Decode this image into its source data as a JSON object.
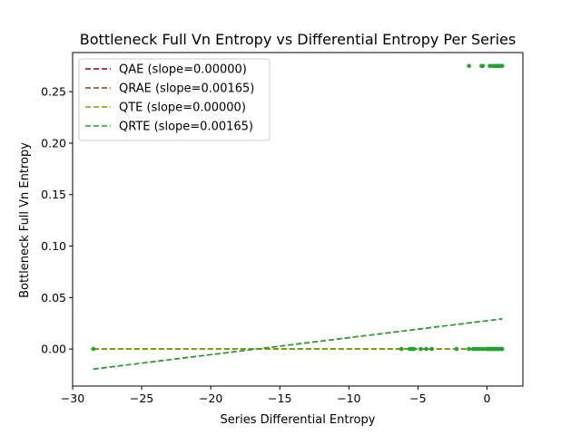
{
  "chart_data": {
    "type": "scatter",
    "title": "Bottleneck Full Vn Entropy vs Differential Entropy Per Series",
    "xlabel": "Series Differential Entropy",
    "ylabel": "Bottleneck Full Vn Entropy",
    "xlim": [
      -30,
      2.6
    ],
    "ylim": [
      -0.036,
      0.288
    ],
    "xticks": [
      -30,
      -25,
      -20,
      -15,
      -10,
      -5,
      0
    ],
    "xtick_labels": [
      "−30",
      "−25",
      "−20",
      "−15",
      "−10",
      "−5",
      "0"
    ],
    "yticks": [
      0.0,
      0.05,
      0.1,
      0.15,
      0.2,
      0.25
    ],
    "ytick_labels": [
      "0.00",
      "0.05",
      "0.10",
      "0.15",
      "0.20",
      "0.25"
    ],
    "grid": false,
    "legend_position": "upper-left",
    "series": [
      {
        "name": "QAE (slope=0.00000)",
        "color": "#8b0000",
        "line": {
          "x": [
            -28.5,
            1.1
          ],
          "y": [
            0.0,
            0.0
          ]
        },
        "points": []
      },
      {
        "name": "QRAE (slope=0.00165)",
        "color": "#7a4a00",
        "line": {
          "x": [
            -28.5,
            1.1
          ],
          "y": [
            -0.0195,
            0.0293
          ]
        },
        "points": []
      },
      {
        "name": "QTE (slope=0.00000)",
        "color": "#6aaa00",
        "line": {
          "x": [
            -28.5,
            1.1
          ],
          "y": [
            0.0,
            0.0
          ]
        },
        "points": []
      },
      {
        "name": "QRTE (slope=0.00165)",
        "color": "#22a233",
        "line": {
          "x": [
            -28.5,
            1.1
          ],
          "y": [
            -0.0195,
            0.0293
          ]
        },
        "points": [
          [
            -28.5,
            0.0
          ],
          [
            -6.2,
            0.0
          ],
          [
            -5.6,
            0.0
          ],
          [
            -5.4,
            0.0
          ],
          [
            -5.3,
            0.0
          ],
          [
            -4.8,
            0.0
          ],
          [
            -4.4,
            0.0
          ],
          [
            -4.0,
            0.0
          ],
          [
            -2.2,
            0.0
          ],
          [
            -1.3,
            0.0
          ],
          [
            -1.0,
            0.0
          ],
          [
            -0.8,
            0.0
          ],
          [
            -0.6,
            0.0
          ],
          [
            -0.4,
            0.0
          ],
          [
            -0.2,
            0.0
          ],
          [
            0.0,
            0.0
          ],
          [
            0.1,
            0.0
          ],
          [
            0.2,
            0.0
          ],
          [
            0.3,
            0.0
          ],
          [
            0.4,
            0.0
          ],
          [
            0.5,
            0.0
          ],
          [
            0.6,
            0.0
          ],
          [
            0.7,
            0.0
          ],
          [
            0.8,
            0.0
          ],
          [
            0.9,
            0.0
          ],
          [
            1.0,
            0.0
          ],
          [
            1.1,
            0.0
          ],
          [
            -1.3,
            0.275
          ],
          [
            -0.4,
            0.275
          ],
          [
            -0.3,
            0.275
          ],
          [
            0.2,
            0.275
          ],
          [
            0.4,
            0.275
          ],
          [
            0.5,
            0.275
          ],
          [
            0.6,
            0.275
          ],
          [
            0.7,
            0.275
          ],
          [
            0.8,
            0.275
          ],
          [
            0.9,
            0.275
          ],
          [
            1.0,
            0.275
          ],
          [
            1.1,
            0.275
          ]
        ]
      }
    ]
  }
}
